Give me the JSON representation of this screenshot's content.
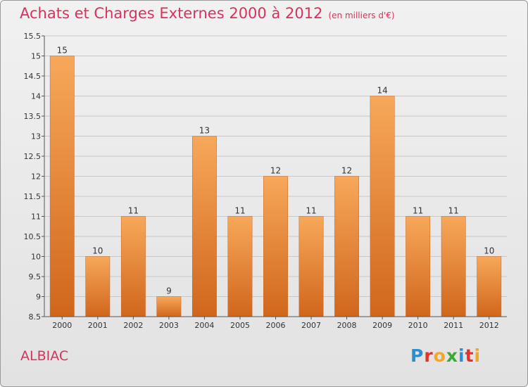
{
  "header": {
    "title": "Achats et Charges Externes 2000 à 2012",
    "subtitle": "(en milliers d'€)"
  },
  "footer": {
    "place": "ALBIAC",
    "logo_letters": [
      "P",
      "r",
      "o",
      "x",
      "i",
      "t",
      "i"
    ],
    "logo_colors": [
      "#2e8fd0",
      "#e5312b",
      "#f5a623",
      "#3aa935",
      "#2e8fd0",
      "#e5312b",
      "#f5a623"
    ]
  },
  "colors": {
    "bar_top": "#f7a85a",
    "bar_bottom": "#d0661c",
    "grid": "#c8c8c8"
  },
  "chart_data": {
    "type": "bar",
    "title": "Achats et Charges Externes 2000 à 2012",
    "subtitle": "(en milliers d'€)",
    "xlabel": "",
    "ylabel": "",
    "categories": [
      "2000",
      "2001",
      "2002",
      "2003",
      "2004",
      "2005",
      "2006",
      "2007",
      "2008",
      "2009",
      "2010",
      "2011",
      "2012"
    ],
    "values": [
      15,
      10,
      11,
      9,
      13,
      11,
      12,
      11,
      12,
      14,
      11,
      11,
      10
    ],
    "ylim": [
      8.5,
      15.5
    ],
    "yticks": [
      8.5,
      9,
      9.5,
      10,
      10.5,
      11,
      11.5,
      12,
      12.5,
      13,
      13.5,
      14,
      14.5,
      15,
      15.5
    ],
    "ytick_labels": [
      "8.5",
      "9",
      "9.5",
      "10",
      "10.5",
      "11",
      "11.5",
      "12",
      "12.5",
      "13",
      "13.5",
      "14",
      "14.5",
      "15",
      "15.5"
    ],
    "grid": true,
    "legend": "none"
  }
}
